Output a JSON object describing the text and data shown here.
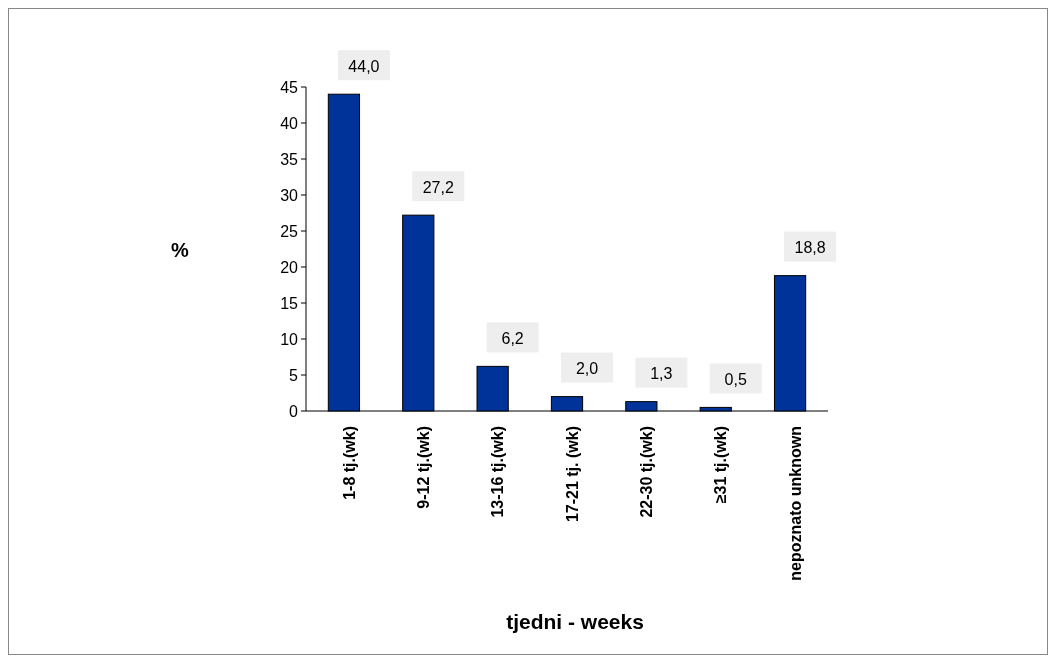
{
  "chart_data": {
    "type": "bar",
    "xlabel": "tjedni - weeks",
    "ylabel": "%",
    "categories": [
      "1-8 tj.(wk)",
      "9-12 tj.(wk)",
      "13-16 tj.(wk)",
      "17-21 tj. (wk)",
      "22-30 tj.(wk)",
      "≥31 tj.(wk)",
      "nepoznato unknown"
    ],
    "values": [
      44.0,
      27.2,
      6.2,
      2.0,
      1.3,
      0.5,
      18.8
    ],
    "value_labels": [
      "44,0",
      "27,2",
      "6,2",
      "2,0",
      "1,3",
      "0,5",
      "18,8"
    ],
    "color": "#003399",
    "ylim": [
      0,
      45
    ],
    "yticks": [
      0,
      5,
      10,
      15,
      20,
      25,
      30,
      35,
      40,
      45
    ],
    "grid": false
  }
}
